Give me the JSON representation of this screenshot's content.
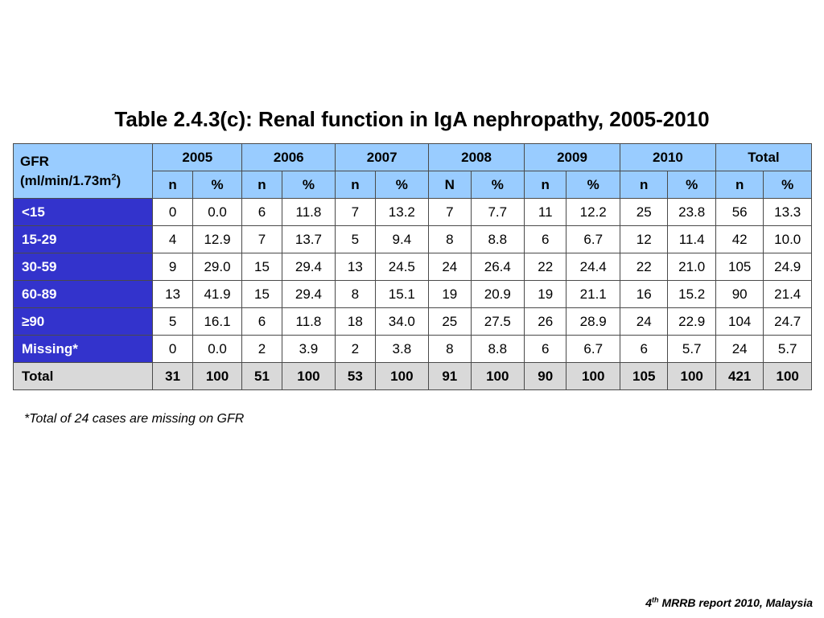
{
  "title": "Table 2.4.3(c): Renal function in IgA nephropathy, 2005-2010",
  "table": {
    "row_header_label": "GFR",
    "row_header_unit": "(ml/min/1.73m",
    "row_header_unit_sup": "2",
    "row_header_unit_close": ")",
    "years": [
      "2005",
      "2006",
      "2007",
      "2008",
      "2009",
      "2010",
      "Total"
    ],
    "subheaders": [
      "n",
      "%",
      "n",
      "%",
      "n",
      "%",
      "N",
      "%",
      "n",
      "%",
      "n",
      "%",
      "n",
      "%"
    ],
    "rows": [
      {
        "label": "<15",
        "cells": [
          "0",
          "0.0",
          "6",
          "11.8",
          "7",
          "13.2",
          "7",
          "7.7",
          "11",
          "12.2",
          "25",
          "23.8",
          "56",
          "13.3"
        ]
      },
      {
        "label": "15-29",
        "cells": [
          "4",
          "12.9",
          "7",
          "13.7",
          "5",
          "9.4",
          "8",
          "8.8",
          "6",
          "6.7",
          "12",
          "11.4",
          "42",
          "10.0"
        ]
      },
      {
        "label": "30-59",
        "cells": [
          "9",
          "29.0",
          "15",
          "29.4",
          "13",
          "24.5",
          "24",
          "26.4",
          "22",
          "24.4",
          "22",
          "21.0",
          "105",
          "24.9"
        ]
      },
      {
        "label": "60-89",
        "cells": [
          "13",
          "41.9",
          "15",
          "29.4",
          "8",
          "15.1",
          "19",
          "20.9",
          "19",
          "21.1",
          "16",
          "15.2",
          "90",
          "21.4"
        ]
      },
      {
        "label": "≥90",
        "cells": [
          "5",
          "16.1",
          "6",
          "11.8",
          "18",
          "34.0",
          "25",
          "27.5",
          "26",
          "28.9",
          "24",
          "22.9",
          "104",
          "24.7"
        ]
      },
      {
        "label": "Missing*",
        "cells": [
          "0",
          "0.0",
          "2",
          "3.9",
          "2",
          "3.8",
          "8",
          "8.8",
          "6",
          "6.7",
          "6",
          "5.7",
          "24",
          "5.7"
        ]
      },
      {
        "label": "Total",
        "cells": [
          "31",
          "100",
          "51",
          "100",
          "53",
          "100",
          "91",
          "100",
          "90",
          "100",
          "105",
          "100",
          "421",
          "100"
        ]
      }
    ]
  },
  "footnote": "*Total of 24 cases are missing on GFR",
  "source": {
    "ordinal": "4",
    "ordinal_suffix": "th",
    "text": " MRRB report 2010, Malaysia"
  },
  "colors": {
    "header_bg": "#99ccff",
    "row_label_bg": "#3333cc",
    "row_label_text": "#ffffff",
    "total_row_bg": "#d9d9d9"
  }
}
